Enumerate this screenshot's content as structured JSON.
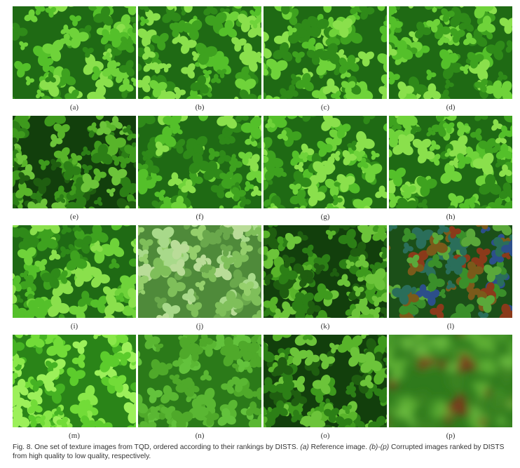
{
  "figure": {
    "panels": [
      {
        "label": "(a)",
        "style": "clover"
      },
      {
        "label": "(b)",
        "style": "clover"
      },
      {
        "label": "(c)",
        "style": "clover"
      },
      {
        "label": "(d)",
        "style": "clover"
      },
      {
        "label": "(e)",
        "style": "clover-dark"
      },
      {
        "label": "(f)",
        "style": "clover"
      },
      {
        "label": "(g)",
        "style": "clover"
      },
      {
        "label": "(h)",
        "style": "clover"
      },
      {
        "label": "(i)",
        "style": "clover"
      },
      {
        "label": "(j)",
        "style": "clover-pale"
      },
      {
        "label": "(k)",
        "style": "clover-dark"
      },
      {
        "label": "(l)",
        "style": "color-noise"
      },
      {
        "label": "(m)",
        "style": "clover-bright"
      },
      {
        "label": "(n)",
        "style": "flat-quantized"
      },
      {
        "label": "(o)",
        "style": "clover-dark"
      },
      {
        "label": "(p)",
        "style": "blur"
      }
    ]
  },
  "caption": {
    "prefix": "Fig. 8. One set of texture images from TQD, ordered according to their rankings by DISTS. ",
    "italic1": "(a)",
    "mid1": " Reference image. ",
    "italic2": "(b)-(p)",
    "mid2": " Corrupted images ranked by DISTS from high quality to low quality, respectively."
  },
  "colors": {
    "leaf_light": "#6fd33a",
    "leaf_mid": "#3fae22",
    "leaf_dark": "#1d6e12",
    "background_dark": "#0f3f0a"
  }
}
